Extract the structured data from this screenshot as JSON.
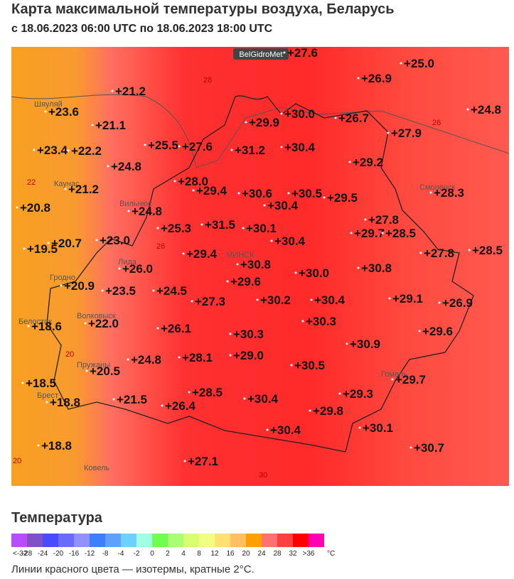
{
  "header": {
    "title": "Карта максимальной температуры воздуха, Беларусь",
    "subtitle": "с 18.06.2023 06:00 UTC по 18.06.2023 18:00 UTC"
  },
  "map": {
    "watermark": "BelGidroMet",
    "temperatures": [
      "+27.6",
      "+25.0",
      "+26.9",
      "+21.2",
      "+24.8",
      "+23.6",
      "+30.0",
      "+26.7",
      "+21.1",
      "+29.9",
      "+27.9",
      "+23.4",
      "+22.2",
      "+25.5",
      "+27.6",
      "+31.2",
      "+30.4",
      "+29.2",
      "+24.8",
      "+21.2",
      "+28.0",
      "+29.4",
      "+30.6",
      "+30.5",
      "+29.5",
      "+28.3",
      "+20.8",
      "+24.8",
      "+30.4",
      "+27.8",
      "+25.3",
      "+31.5",
      "+30.1",
      "+29.7",
      "+28.5",
      "+19.5",
      "+20.7",
      "+23.0",
      "+30.4",
      "+27.8",
      "+28.5",
      "+29.4",
      "+30.8",
      "+26.0",
      "+30.0",
      "+30.8",
      "+20.9",
      "+23.5",
      "+24.5",
      "+29.6",
      "+27.3",
      "+30.2",
      "+30.4",
      "+29.1",
      "+26.9",
      "+18.6",
      "+22.0",
      "+26.1",
      "+30.3",
      "+30.3",
      "+29.6",
      "+30.9",
      "+24.8",
      "+28.1",
      "+29.0",
      "+20.5",
      "+30.5",
      "+18.5",
      "+18.8",
      "+21.5",
      "+28.5",
      "+29.7",
      "+29.3",
      "+26.4",
      "+30.4",
      "+29.8",
      "+30.1",
      "+30.4",
      "+18.8",
      "+30.7",
      "+27.1"
    ],
    "cities": [
      "Вильнюс",
      "МИНСК",
      "Гродно",
      "Брест",
      "Каунас",
      "Шяуляй",
      "Белосток",
      "Пружаны",
      "Ковель",
      "Смоленск",
      "Гомель",
      "Волковыск",
      "Лида"
    ],
    "isolines": [
      "28",
      "26",
      "22",
      "26",
      "20",
      "20",
      "30"
    ]
  },
  "legend": {
    "title": "Температура",
    "unit": "°C",
    "items": [
      {
        "label": "<-32",
        "color": "#b84dff"
      },
      {
        "label": "-28",
        "color": "#7f50c8"
      },
      {
        "label": "-24",
        "color": "#4a4aff"
      },
      {
        "label": "-20",
        "color": "#6a6aff"
      },
      {
        "label": "-16",
        "color": "#9090ff"
      },
      {
        "label": "-12",
        "color": "#3d7dff"
      },
      {
        "label": "-8",
        "color": "#5fa0ff"
      },
      {
        "label": "-4",
        "color": "#6dd0ff"
      },
      {
        "label": "-2",
        "color": "#a0ffe0"
      },
      {
        "label": "0",
        "color": "#70ff50"
      },
      {
        "label": "2",
        "color": "#a8ff70"
      },
      {
        "label": "4",
        "color": "#d8ff70"
      },
      {
        "label": "8",
        "color": "#f0ff80"
      },
      {
        "label": "12",
        "color": "#ffe070"
      },
      {
        "label": "16",
        "color": "#ffc060"
      },
      {
        "label": "20",
        "color": "#ffa000"
      },
      {
        "label": "24",
        "color": "#ff7070"
      },
      {
        "label": "28",
        "color": "#ff4040"
      },
      {
        "label": "32",
        "color": "#ff0000"
      },
      {
        "label": ">36",
        "color": "#ff00b0"
      }
    ],
    "note": "Линии красного цвета — изотермы, кратные 2°С."
  }
}
